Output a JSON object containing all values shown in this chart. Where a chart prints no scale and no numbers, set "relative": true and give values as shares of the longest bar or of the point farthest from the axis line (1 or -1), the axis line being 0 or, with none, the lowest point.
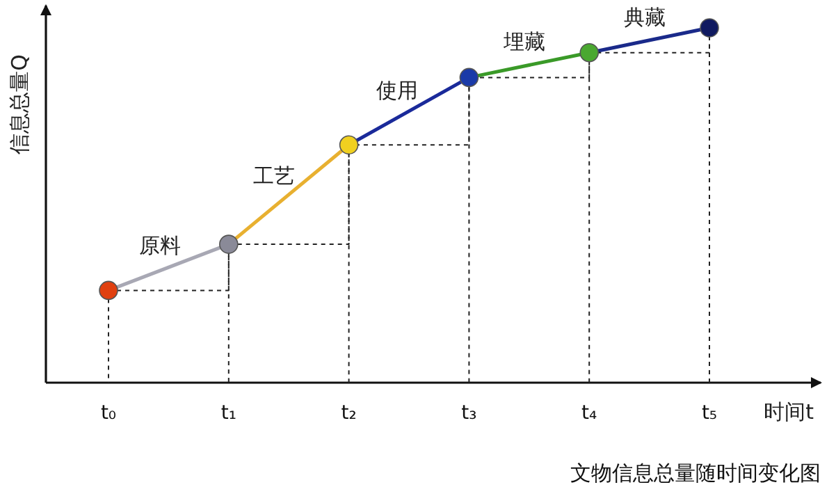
{
  "chart_data": {
    "type": "line",
    "relative": true,
    "xlabel": "时间t",
    "ylabel": "信息总量Q",
    "grid": true,
    "categories": [
      "t₀",
      "t₁",
      "t₂",
      "t₃",
      "t₄",
      "t₅"
    ],
    "series": [
      {
        "name": "原料",
        "color": "#a8a8b4",
        "values": [
          0.26,
          0.39,
          null,
          null,
          null,
          null
        ]
      },
      {
        "name": "工艺",
        "color": "#e8b030",
        "values": [
          null,
          0.39,
          0.67,
          null,
          null,
          null
        ]
      },
      {
        "name": "使用",
        "color": "#1a2a9a",
        "values": [
          null,
          null,
          0.67,
          0.86,
          null,
          null
        ]
      },
      {
        "name": "埋藏",
        "color": "#3a9a28",
        "values": [
          null,
          null,
          null,
          0.86,
          0.93,
          null
        ]
      },
      {
        "name": "典藏",
        "color": "#1a2a8a",
        "values": [
          null,
          null,
          null,
          null,
          0.93,
          1.0
        ]
      },
      {
        "type": "step",
        "color": "#222222",
        "line_style": "dashed",
        "values": [
          0.26,
          0.39,
          0.67,
          0.86,
          0.93,
          1.0
        ]
      },
      {
        "type": "scatter",
        "values": [
          0.26,
          0.39,
          0.67,
          0.86,
          0.93,
          1.0
        ],
        "colors": [
          "#e04010",
          "#8a8a98",
          "#f0d020",
          "#1a3aa8",
          "#4aa830",
          "#101a60"
        ]
      }
    ],
    "annotations": [
      "文物信息总量随时间变化图"
    ]
  }
}
